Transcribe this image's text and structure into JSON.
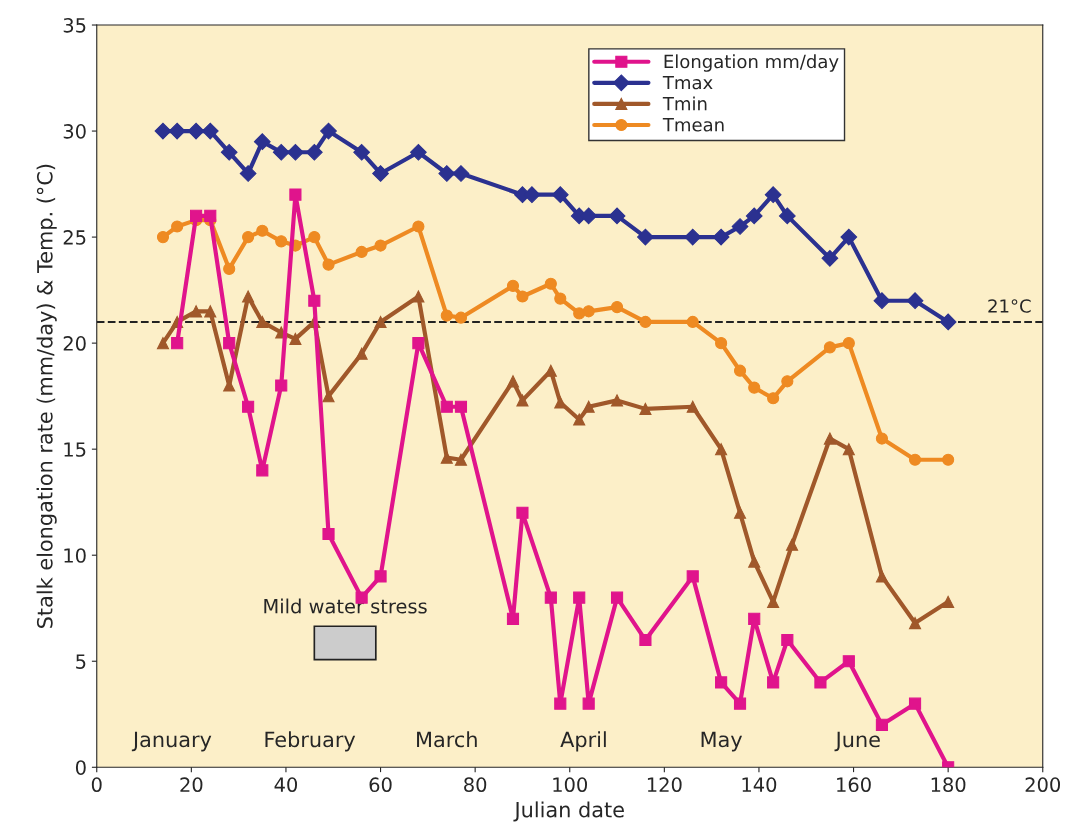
{
  "chart_data": {
    "type": "line",
    "xlabel": "Julian date",
    "ylabel": "Stalk elongation rate (mm/day) & Temp. (°C)",
    "xlim": [
      0,
      200
    ],
    "xticks": [
      0,
      20,
      40,
      60,
      80,
      100,
      120,
      140,
      160,
      180,
      200
    ],
    "ylim": [
      0,
      35
    ],
    "yticks": [
      0,
      5,
      10,
      15,
      20,
      25,
      30,
      35
    ],
    "grid": false,
    "legend": "top right",
    "line_style": "solid",
    "series": [
      {
        "name": "Elongation mm/day",
        "color": "#e0148c",
        "marker": "square",
        "x": [
          17,
          21,
          24,
          28,
          32,
          35,
          39,
          42,
          46,
          49,
          56,
          60,
          68,
          74,
          77,
          88,
          90,
          96,
          98,
          102,
          104,
          110,
          116,
          126,
          132,
          136,
          139,
          143,
          146,
          153,
          159,
          166,
          173,
          180
        ],
        "values": [
          20,
          26,
          26,
          20,
          17,
          14,
          18,
          27,
          22,
          11,
          8,
          9,
          20,
          17,
          17,
          7,
          12,
          8,
          3,
          8,
          3,
          8,
          6,
          9,
          4,
          3,
          7,
          4,
          6,
          4,
          5,
          2,
          3,
          0
        ]
      },
      {
        "name": "Tmax",
        "color": "#2b3190",
        "marker": "diamond",
        "x": [
          14,
          17,
          21,
          24,
          28,
          32,
          35,
          39,
          42,
          46,
          49,
          56,
          60,
          68,
          74,
          77,
          90,
          92,
          98,
          102,
          104,
          110,
          116,
          126,
          132,
          136,
          139,
          143,
          146,
          155,
          159,
          166,
          173,
          180
        ],
        "values": [
          30,
          30,
          30,
          30,
          29,
          28,
          29.5,
          29,
          29,
          29,
          30,
          29,
          28,
          29,
          28,
          28,
          27,
          27,
          27,
          26,
          26,
          26,
          25,
          25,
          25,
          25.5,
          26,
          27,
          26,
          24,
          25,
          22,
          22,
          21
        ]
      },
      {
        "name": "Tmin",
        "color": "#a0582a",
        "marker": "triangle",
        "x": [
          14,
          17,
          21,
          24,
          28,
          32,
          35,
          39,
          42,
          46,
          49,
          56,
          60,
          68,
          74,
          77,
          88,
          90,
          96,
          98,
          102,
          104,
          110,
          116,
          126,
          132,
          136,
          139,
          143,
          147,
          155,
          159,
          166,
          173,
          180
        ],
        "values": [
          20,
          21,
          21.5,
          21.5,
          18,
          22.2,
          21,
          20.5,
          20.2,
          21,
          17.5,
          19.5,
          21,
          22.2,
          14.6,
          14.5,
          18.2,
          17.3,
          18.7,
          17.2,
          16.4,
          17,
          17.3,
          16.9,
          17,
          15,
          12,
          9.7,
          7.8,
          10.5,
          15.5,
          15,
          9,
          6.8,
          7.8
        ]
      },
      {
        "name": "Tmean",
        "color": "#ee8a22",
        "marker": "circle",
        "x": [
          14,
          17,
          21,
          24,
          28,
          32,
          35,
          39,
          42,
          46,
          49,
          56,
          60,
          68,
          74,
          77,
          88,
          90,
          96,
          98,
          102,
          104,
          110,
          116,
          126,
          132,
          136,
          139,
          143,
          146,
          155,
          159,
          166,
          173,
          180
        ],
        "values": [
          25,
          25.5,
          25.8,
          25.8,
          23.5,
          25,
          25.3,
          24.8,
          24.6,
          25,
          23.7,
          24.3,
          24.6,
          25.5,
          21.3,
          21.2,
          22.7,
          22.2,
          22.8,
          22.1,
          21.4,
          21.5,
          21.7,
          21,
          21,
          20,
          18.7,
          17.9,
          17.4,
          18.2,
          19.8,
          20,
          15.5,
          14.5,
          14.5
        ]
      }
    ],
    "ref_lines": [
      {
        "axis": "y",
        "value": 21,
        "label": "21°C",
        "color": "#222222",
        "line_style": "dashed"
      }
    ],
    "bands": [
      {
        "axis": "x",
        "from": 46,
        "to": 59,
        "label": "Mild water stress",
        "color": "#cccccc"
      }
    ],
    "annotations": [
      "January",
      "February",
      "March",
      "April",
      "May",
      "June"
    ]
  }
}
